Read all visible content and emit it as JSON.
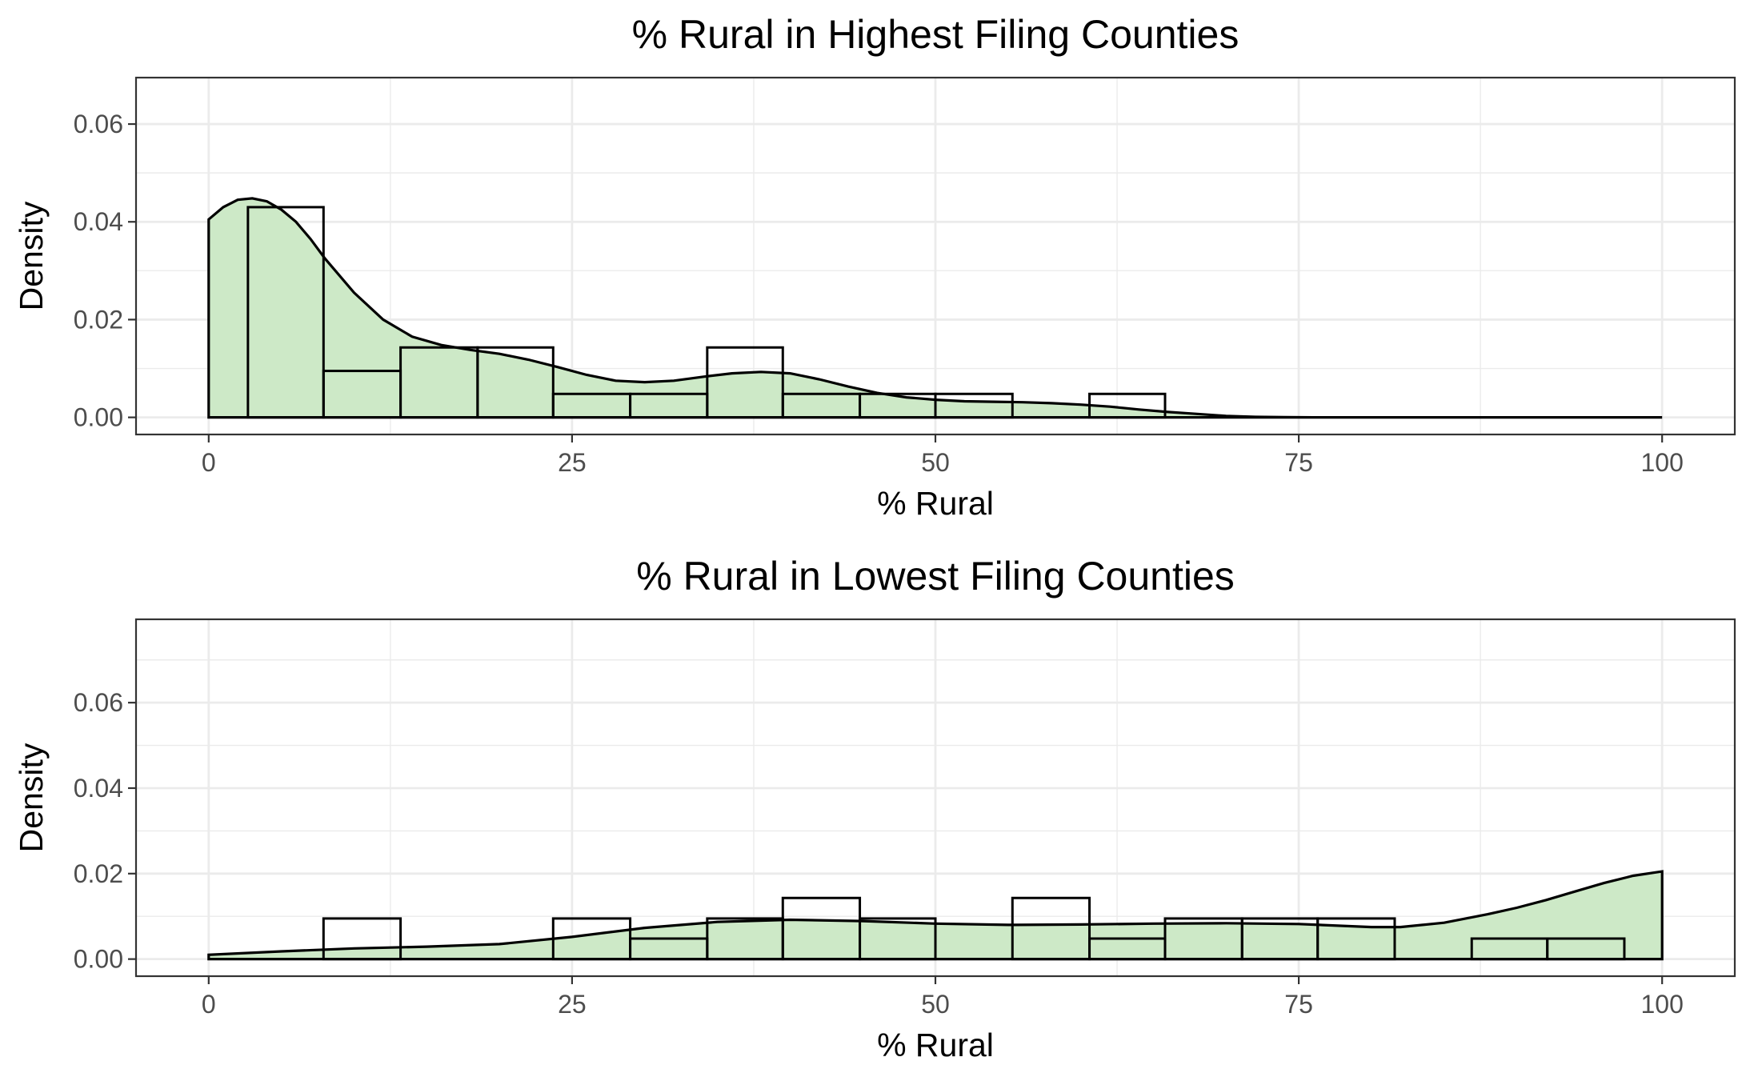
{
  "chart_data": [
    {
      "type": "histogram",
      "title": "% Rural in Highest Filing Counties",
      "xlabel": "% Rural",
      "ylabel": "Density",
      "xlim": [
        -5,
        105
      ],
      "ylim": [
        -0.0035,
        0.0695
      ],
      "x_ticks": [
        0,
        25,
        50,
        75,
        100
      ],
      "x_tick_labels": [
        "0",
        "25",
        "50",
        "75",
        "100"
      ],
      "y_ticks": [
        0,
        0.02,
        0.04,
        0.06
      ],
      "y_tick_labels": [
        "0.00",
        "0.02",
        "0.04",
        "0.06"
      ],
      "grid": true,
      "bins": [
        {
          "x0": 2.7,
          "x1": 7.9,
          "density": 0.043
        },
        {
          "x0": 7.9,
          "x1": 13.2,
          "density": 0.0095
        },
        {
          "x0": 13.2,
          "x1": 18.5,
          "density": 0.0143
        },
        {
          "x0": 18.5,
          "x1": 23.7,
          "density": 0.0143
        },
        {
          "x0": 23.7,
          "x1": 29.0,
          "density": 0.0048
        },
        {
          "x0": 29.0,
          "x1": 34.3,
          "density": 0.0048
        },
        {
          "x0": 34.3,
          "x1": 39.5,
          "density": 0.0143
        },
        {
          "x0": 39.5,
          "x1": 44.8,
          "density": 0.0048
        },
        {
          "x0": 44.8,
          "x1": 50.0,
          "density": 0.0048
        },
        {
          "x0": 50.0,
          "x1": 55.3,
          "density": 0.0048
        },
        {
          "x0": 60.6,
          "x1": 65.8,
          "density": 0.0048
        }
      ],
      "density": {
        "x": [
          0,
          1,
          2,
          3,
          4,
          5,
          6,
          7,
          8,
          10,
          12,
          14,
          16,
          18,
          20,
          22,
          24,
          26,
          28,
          30,
          32,
          34,
          36,
          38,
          40,
          42,
          44,
          46,
          48,
          50,
          52,
          54,
          56,
          58,
          60,
          62,
          64,
          66,
          68,
          70,
          72,
          74,
          76,
          80,
          85,
          90,
          95,
          100
        ],
        "y": [
          0.0405,
          0.043,
          0.0445,
          0.0448,
          0.0442,
          0.0425,
          0.04,
          0.0365,
          0.0325,
          0.0255,
          0.02,
          0.0165,
          0.0148,
          0.0138,
          0.013,
          0.0118,
          0.0103,
          0.0087,
          0.0075,
          0.0072,
          0.0075,
          0.0083,
          0.009,
          0.0093,
          0.009,
          0.0078,
          0.0063,
          0.005,
          0.0041,
          0.0036,
          0.0033,
          0.0032,
          0.0031,
          0.0029,
          0.0026,
          0.0022,
          0.0016,
          0.0011,
          0.0007,
          0.0003,
          0.0001,
          3e-05,
          0,
          0,
          0,
          0,
          0,
          0
        ]
      },
      "fill_color": "#cde9c7",
      "line_color": "#000000"
    },
    {
      "type": "histogram",
      "title": "% Rural in Lowest Filing Counties",
      "xlabel": "% Rural",
      "ylabel": "Density",
      "xlim": [
        -5,
        105
      ],
      "ylim": [
        -0.004,
        0.0795
      ],
      "x_ticks": [
        0,
        25,
        50,
        75,
        100
      ],
      "x_tick_labels": [
        "0",
        "25",
        "50",
        "75",
        "100"
      ],
      "y_ticks": [
        0,
        0.02,
        0.04,
        0.06
      ],
      "y_tick_labels": [
        "0.00",
        "0.02",
        "0.04",
        "0.06"
      ],
      "grid": true,
      "bins": [
        {
          "x0": 7.9,
          "x1": 13.2,
          "density": 0.0095
        },
        {
          "x0": 23.7,
          "x1": 29.0,
          "density": 0.0095
        },
        {
          "x0": 29.0,
          "x1": 34.3,
          "density": 0.0048
        },
        {
          "x0": 34.3,
          "x1": 39.5,
          "density": 0.0095
        },
        {
          "x0": 39.5,
          "x1": 44.8,
          "density": 0.0143
        },
        {
          "x0": 44.8,
          "x1": 50.0,
          "density": 0.0095
        },
        {
          "x0": 55.3,
          "x1": 60.6,
          "density": 0.0143
        },
        {
          "x0": 60.6,
          "x1": 65.8,
          "density": 0.0048
        },
        {
          "x0": 65.8,
          "x1": 71.1,
          "density": 0.0095
        },
        {
          "x0": 71.1,
          "x1": 76.3,
          "density": 0.0095
        },
        {
          "x0": 76.3,
          "x1": 81.6,
          "density": 0.0095
        },
        {
          "x0": 86.9,
          "x1": 92.1,
          "density": 0.0048
        },
        {
          "x0": 92.1,
          "x1": 97.4,
          "density": 0.0048
        }
      ],
      "density": {
        "x": [
          0,
          5,
          10,
          15,
          20,
          25,
          30,
          35,
          40,
          45,
          50,
          55,
          60,
          65,
          70,
          75,
          80,
          82,
          85,
          88,
          90,
          92,
          94,
          96,
          98,
          100
        ],
        "y": [
          0.001,
          0.0018,
          0.0025,
          0.0029,
          0.0035,
          0.0052,
          0.0073,
          0.0087,
          0.0092,
          0.0089,
          0.0083,
          0.008,
          0.0081,
          0.0083,
          0.0084,
          0.0082,
          0.0075,
          0.0075,
          0.0085,
          0.0105,
          0.012,
          0.0138,
          0.0158,
          0.0178,
          0.0195,
          0.0205
        ]
      },
      "fill_color": "#cde9c7",
      "line_color": "#000000"
    }
  ]
}
